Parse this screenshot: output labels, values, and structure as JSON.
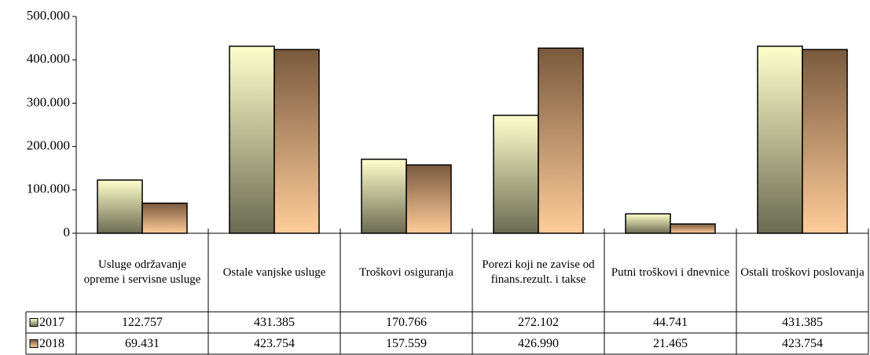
{
  "chart_data": {
    "type": "bar",
    "categories": [
      "Usluge održavanje opreme i servisne usluge",
      "Ostale vanjske usluge",
      "Troškovi osiguranja",
      "Porezi koji ne zavise od finans.rezult. i takse",
      "Putni troškovi i dnevnice",
      "Ostali troškovi poslovanja"
    ],
    "series": [
      {
        "name": "2017",
        "gradient": [
          "#ffffcc",
          "#6b6b52"
        ],
        "values": [
          122757,
          431385,
          170766,
          272102,
          44741,
          431385
        ],
        "value_labels": [
          "122.757",
          "431.385",
          "170.766",
          "272.102",
          "44.741",
          "431.385"
        ]
      },
      {
        "name": "2018",
        "gradient": [
          "#7a5a3e",
          "#ffcc99"
        ],
        "values": [
          69431,
          423754,
          157559,
          426990,
          21465,
          423754
        ],
        "value_labels": [
          "69.431",
          "423.754",
          "157.559",
          "426.990",
          "21.465",
          "423.754"
        ]
      }
    ],
    "ylim": [
      0,
      500000
    ],
    "yticks": [
      0,
      {
        "value": 100000,
        "label": "100.000"
      },
      {
        "value": 200000,
        "label": "200.000"
      },
      {
        "value": 300000,
        "label": "300.000"
      },
      {
        "value": 400000,
        "label": "400.000"
      },
      {
        "value": 500000,
        "label": "500.000"
      }
    ],
    "data_table": true
  }
}
